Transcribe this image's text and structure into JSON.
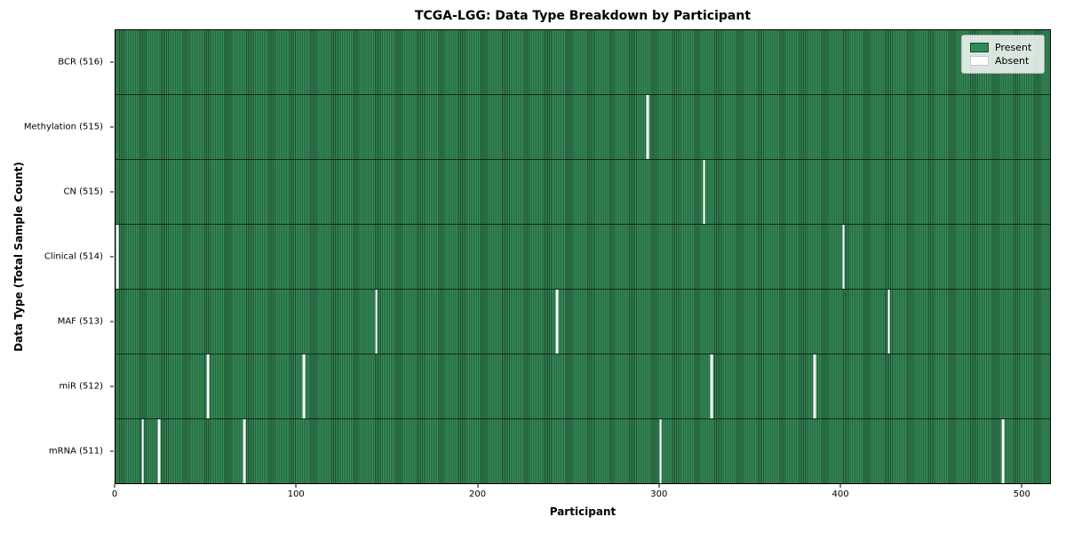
{
  "chart_data": {
    "type": "heatmap",
    "title": "TCGA-LGG: Data Type Breakdown by Participant",
    "xlabel": "Participant",
    "ylabel": "Data Type (Total Sample Count)",
    "x_ticks": [
      0,
      100,
      200,
      300,
      400,
      500
    ],
    "x_range": [
      0,
      516
    ],
    "total_participants": 516,
    "grid": false,
    "legend_position": "upper right",
    "colors": {
      "present": "#2e8b57",
      "present_edge": "#1d4d31",
      "absent": "#ffffff",
      "row_divider": "#081c10",
      "plot_border": "#000000"
    },
    "legend": [
      {
        "label": "Present",
        "color": "#2e8b57",
        "edge": "#1d4d31"
      },
      {
        "label": "Absent",
        "color": "#ffffff",
        "edge": "#c9c9c9"
      }
    ],
    "rows": [
      {
        "label": "BCR (516)",
        "data_type": "BCR",
        "present_count": 516,
        "absent_participants": []
      },
      {
        "label": "Methylation (515)",
        "data_type": "Methylation",
        "present_count": 515,
        "absent_participants": [
          294
        ]
      },
      {
        "label": "CN (515)",
        "data_type": "CN",
        "present_count": 515,
        "absent_participants": [
          325
        ]
      },
      {
        "label": "Clinical (514)",
        "data_type": "Clinical",
        "present_count": 514,
        "absent_participants": [
          1,
          402
        ]
      },
      {
        "label": "MAF (513)",
        "data_type": "MAF",
        "present_count": 513,
        "absent_participants": [
          144,
          244,
          427
        ]
      },
      {
        "label": "miR (512)",
        "data_type": "miR",
        "present_count": 512,
        "absent_participants": [
          51,
          104,
          329,
          386
        ]
      },
      {
        "label": "mRNA (511)",
        "data_type": "mRNA",
        "present_count": 511,
        "absent_participants": [
          15,
          24,
          71,
          301,
          490
        ]
      }
    ]
  }
}
